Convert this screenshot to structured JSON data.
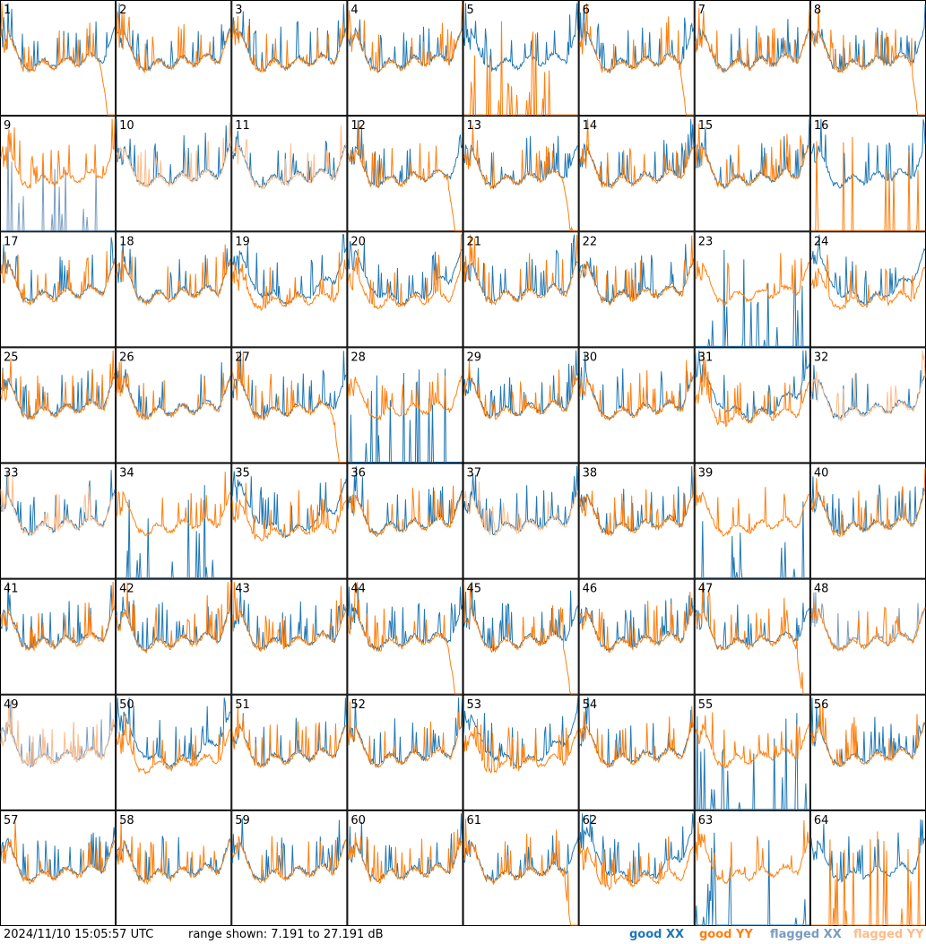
{
  "chart_data": {
    "type": "line",
    "panel_count": 64,
    "layout": "8x8 grid of small spectrum panels, numbered 1-64",
    "panel_labels": [
      "1",
      "2",
      "3",
      "4",
      "5",
      "6",
      "7",
      "8",
      "9",
      "10",
      "11",
      "12",
      "13",
      "14",
      "15",
      "16",
      "17",
      "18",
      "19",
      "20",
      "21",
      "22",
      "23",
      "24",
      "25",
      "26",
      "27",
      "28",
      "29",
      "30",
      "31",
      "32",
      "33",
      "34",
      "35",
      "36",
      "37",
      "38",
      "39",
      "40",
      "41",
      "42",
      "43",
      "44",
      "45",
      "46",
      "47",
      "48",
      "49",
      "50",
      "51",
      "52",
      "53",
      "54",
      "55",
      "56",
      "57",
      "58",
      "59",
      "60",
      "61",
      "62",
      "63",
      "64"
    ],
    "ylim": [
      7.191,
      27.191
    ],
    "y_unit": "dB",
    "grid": false,
    "series": [
      {
        "name": "good XX",
        "color": "#1f77b4"
      },
      {
        "name": "good YY",
        "color": "#ff7f0e"
      },
      {
        "name": "flagged XX",
        "color": "#7a9cc0"
      },
      {
        "name": "flagged YY",
        "color": "#ffbb88"
      }
    ],
    "panel_shapes": {
      "normal": [
        1,
        2,
        3,
        4,
        14,
        15,
        17,
        18,
        21,
        22,
        25,
        26,
        29,
        30,
        36,
        38,
        40,
        41,
        42,
        43,
        46,
        51,
        52,
        54,
        57,
        58,
        59,
        60
      ],
      "xx_above_yy": [
        19,
        20,
        24,
        31,
        35,
        50,
        53,
        62
      ],
      "yy_droop_right": [
        1,
        6,
        8,
        12,
        13,
        27,
        44,
        45,
        47,
        61
      ],
      "only_xx_good": [
        5,
        16,
        64
      ],
      "only_yy_good": [
        23,
        28,
        34,
        39,
        55,
        63
      ],
      "flagged_xx": [
        9,
        23,
        48,
        49
      ],
      "flagged_yy": [
        10,
        11,
        32,
        33,
        37,
        49
      ]
    }
  },
  "footer": {
    "timestamp": "2024/11/10 15:05:57 UTC",
    "range_text": "range shown: 7.191 to 27.191 dB",
    "legend": [
      {
        "label": "good XX",
        "color": "#1f77b4"
      },
      {
        "label": "good YY",
        "color": "#ff7f0e"
      },
      {
        "label": "flagged XX",
        "color": "#7a9cc0"
      },
      {
        "label": "flagged YY",
        "color": "#ffbb88"
      }
    ]
  }
}
